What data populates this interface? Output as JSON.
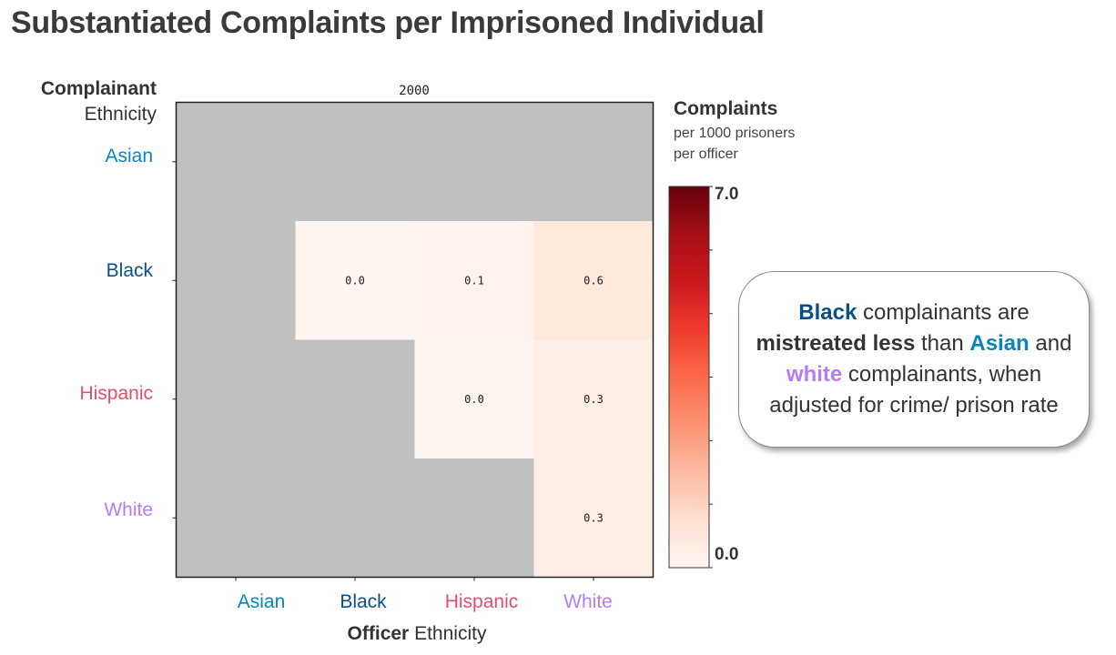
{
  "title": "Substantiated Complaints per Imprisoned Individual",
  "colors": {
    "asian": "#0a84c0",
    "black": "#0b4f8a",
    "hispanic": "#e0506a",
    "white": "#b77cf0",
    "missing": "#c0c0c0",
    "colormap": "Reds"
  },
  "colorbar": {
    "title": "Complaints",
    "subtitle_line1": "per 1000 prisoners",
    "subtitle_line2": "per officer",
    "max_label": "7.0",
    "min_label": "0.0"
  },
  "callout": {
    "black": "Black",
    "t1": " complainants are ",
    "em": "mistreated less",
    "t2": " than ",
    "asian": "Asian",
    "t3": " and ",
    "white": "white",
    "t4": " complainants, when adjusted for crime/ prison rate"
  },
  "chart_data": {
    "type": "heatmap",
    "title": "Substantiated Complaints per Imprisoned Individual",
    "subtitle": "2000",
    "ylabel_bold": "Complainant",
    "ylabel": "Ethnicity",
    "xlabel_bold": "Officer",
    "xlabel": "Ethnicity",
    "rows": [
      "Asian",
      "Black",
      "Hispanic",
      "White"
    ],
    "cols": [
      "Asian",
      "Black",
      "Hispanic",
      "White"
    ],
    "values": [
      [
        null,
        null,
        null,
        null
      ],
      [
        null,
        0.0,
        0.1,
        0.6
      ],
      [
        null,
        null,
        0.0,
        0.3
      ],
      [
        null,
        null,
        null,
        0.3
      ]
    ],
    "value_labels": [
      [
        null,
        null,
        null,
        null
      ],
      [
        null,
        "0.0",
        "0.1",
        "0.6"
      ],
      [
        null,
        null,
        "0.0",
        "0.3"
      ],
      [
        null,
        null,
        null,
        "0.3"
      ]
    ],
    "value_range": [
      0,
      7
    ],
    "colorbar_range": [
      0.0,
      7.0
    ]
  }
}
